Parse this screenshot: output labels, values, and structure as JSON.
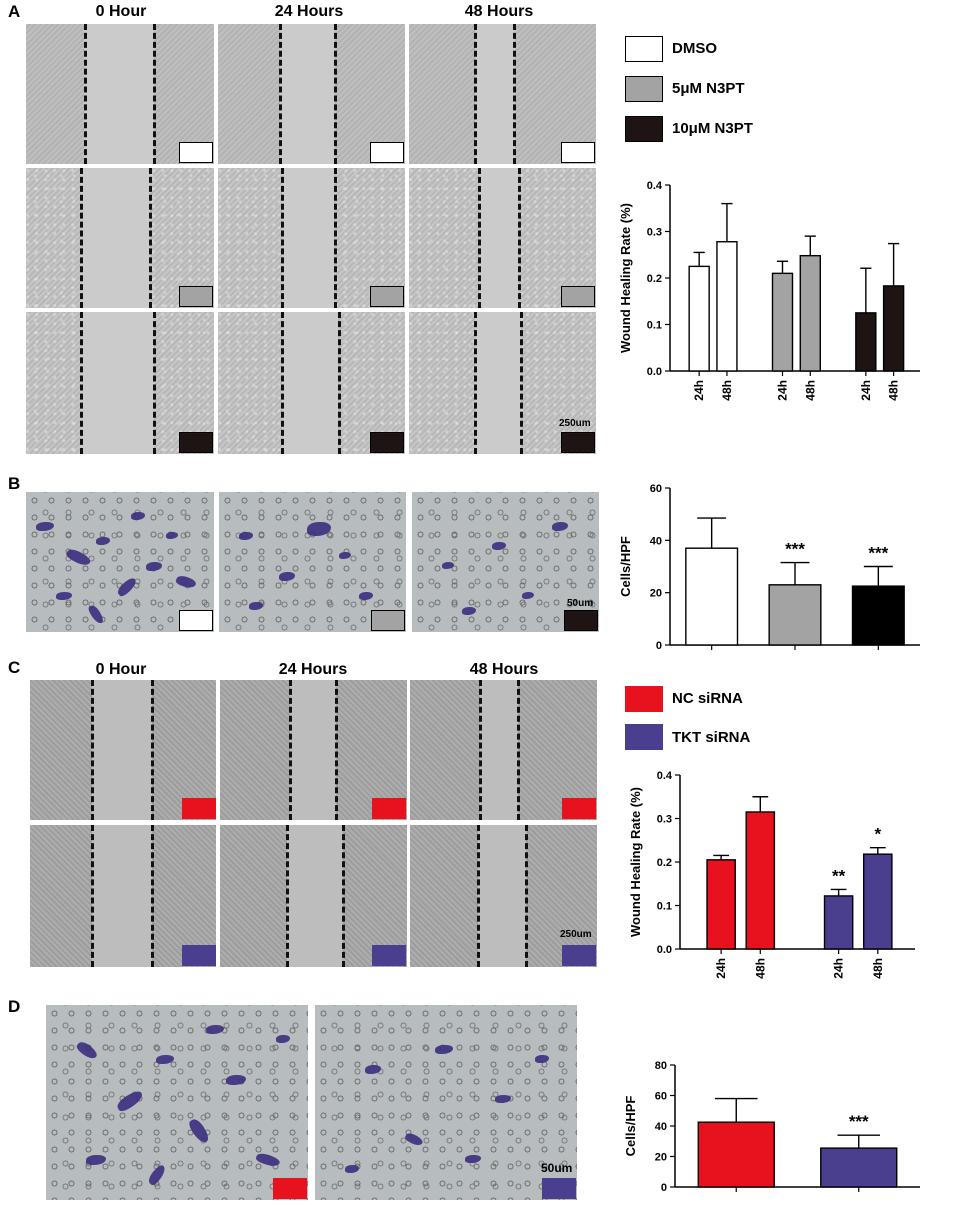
{
  "panels": {
    "A": {
      "letter": "A",
      "time_labels": [
        "0 Hour",
        "24 Hours",
        "48 Hours"
      ],
      "scale_bar": "250um",
      "legend": [
        {
          "label": "DMSO",
          "color": "#ffffff"
        },
        {
          "label": "5μM N3PT",
          "color": "#a3a3a3"
        },
        {
          "label": "10μM N3PT",
          "color": "#1f1414"
        }
      ]
    },
    "B": {
      "letter": "B",
      "scale_bar": "50um"
    },
    "C": {
      "letter": "C",
      "time_labels": [
        "0 Hour",
        "24 Hours",
        "48 Hours"
      ],
      "scale_bar": "250um",
      "legend": [
        {
          "label": "NC siRNA",
          "color": "#e8121e"
        },
        {
          "label": "TKT siRNA",
          "color": "#4a3f8e"
        }
      ]
    },
    "D": {
      "letter": "D",
      "scale_bar": "50um"
    }
  },
  "chart_data": [
    {
      "id": "A",
      "type": "bar",
      "ylabel": "Wound Healing Rate (%)",
      "ylim": [
        0,
        0.4
      ],
      "yticks": [
        "0.0",
        "0.1",
        "0.2",
        "0.3",
        "0.4"
      ],
      "categories": [
        "24h",
        "48h",
        "24h",
        "48h",
        "24h",
        "48h"
      ],
      "values": [
        0.225,
        0.278,
        0.21,
        0.248,
        0.125,
        0.183
      ],
      "errors": [
        0.03,
        0.082,
        0.026,
        0.042,
        0.096,
        0.091
      ],
      "colors": [
        "#ffffff",
        "#ffffff",
        "#a3a3a3",
        "#a3a3a3",
        "#1f1414",
        "#1f1414"
      ],
      "annotations": [
        "",
        "",
        "",
        "",
        "",
        ""
      ]
    },
    {
      "id": "B",
      "type": "bar",
      "ylabel": "Cells/HPF",
      "ylim": [
        0,
        60
      ],
      "yticks": [
        "0",
        "20",
        "40",
        "60"
      ],
      "categories": [
        "",
        "",
        ""
      ],
      "values": [
        37,
        23,
        22.5
      ],
      "errors": [
        11.5,
        8.5,
        7.5
      ],
      "colors": [
        "#ffffff",
        "#a3a3a3",
        "#000000"
      ],
      "annotations": [
        "",
        "***",
        "***"
      ]
    },
    {
      "id": "C",
      "type": "bar",
      "ylabel": "Wound Healing Rate (%)",
      "ylim": [
        0,
        0.4
      ],
      "yticks": [
        "0.0",
        "0.1",
        "0.2",
        "0.3",
        "0.4"
      ],
      "categories": [
        "24h",
        "48h",
        "24h",
        "48h"
      ],
      "values": [
        0.205,
        0.315,
        0.122,
        0.218
      ],
      "errors": [
        0.01,
        0.035,
        0.015,
        0.015
      ],
      "colors": [
        "#e8121e",
        "#e8121e",
        "#4a3f8e",
        "#4a3f8e"
      ],
      "annotations": [
        "",
        "",
        "**",
        "*"
      ]
    },
    {
      "id": "D",
      "type": "bar",
      "ylabel": "Cells/HPF",
      "ylim": [
        0,
        80
      ],
      "yticks": [
        "0",
        "20",
        "40",
        "60",
        "80"
      ],
      "categories": [
        "",
        ""
      ],
      "values": [
        42.5,
        25.5
      ],
      "errors": [
        15.5,
        8.5
      ],
      "colors": [
        "#e8121e",
        "#4a3f8e"
      ],
      "annotations": [
        "",
        "***"
      ]
    }
  ]
}
